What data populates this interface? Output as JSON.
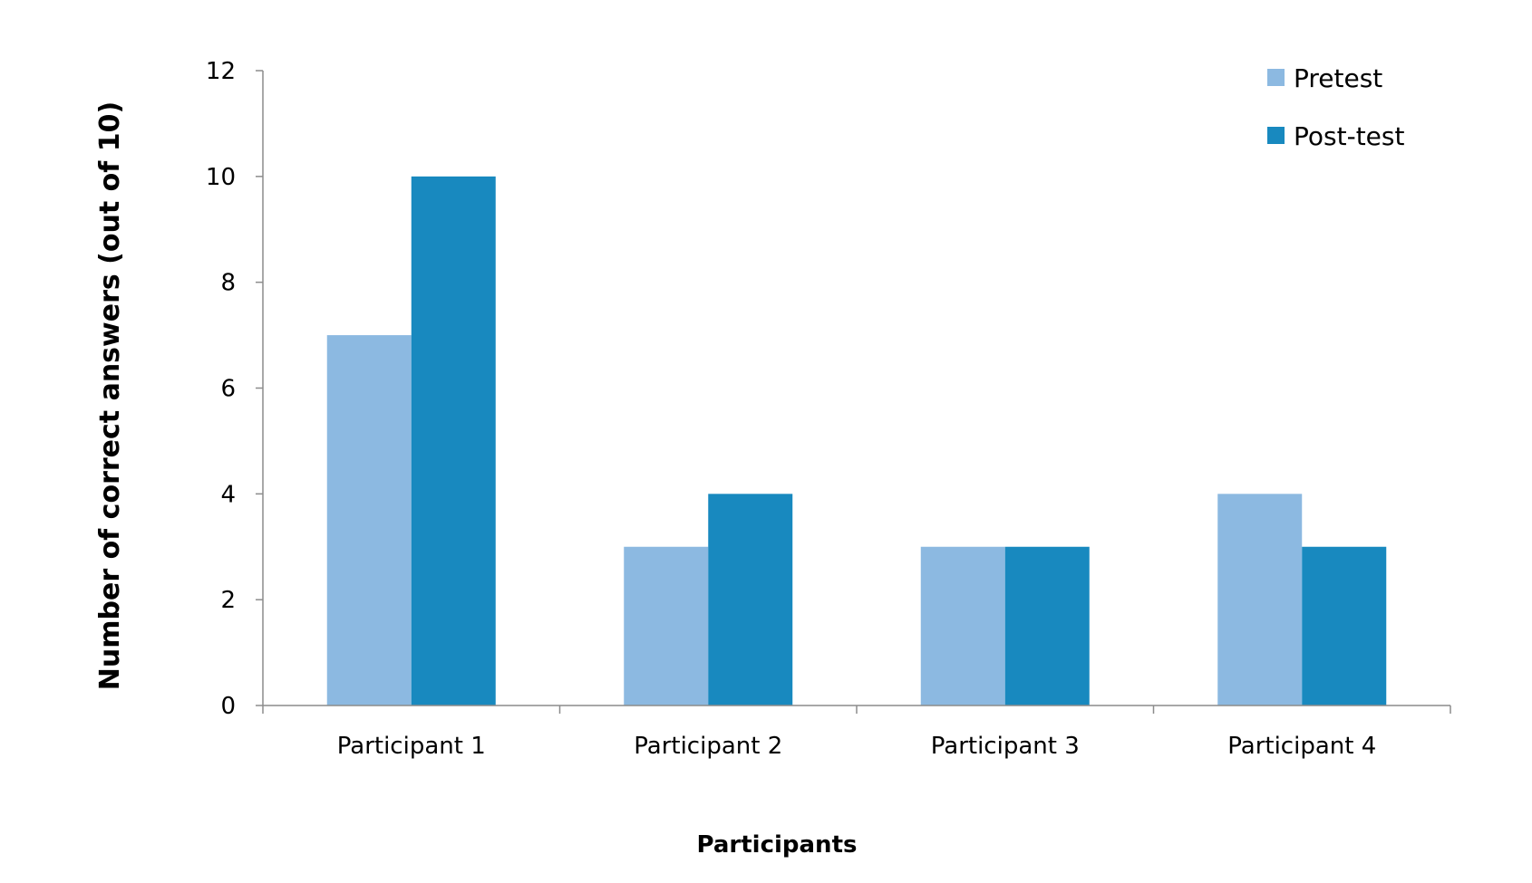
{
  "chart_data": {
    "type": "bar",
    "title": "",
    "xlabel": "Participants",
    "ylabel": "Number of correct answers (out of 10)",
    "categories": [
      "Participant 1",
      "Participant 2",
      "Participant 3",
      "Participant 4"
    ],
    "series": [
      {
        "name": "Pretest",
        "values": [
          7,
          3,
          3,
          4
        ],
        "color": "#8CB9E1"
      },
      {
        "name": "Post-test",
        "values": [
          10,
          4,
          3,
          3
        ],
        "color": "#1889BF"
      }
    ],
    "ylim": [
      0,
      12
    ],
    "yticks": [
      0,
      2,
      4,
      6,
      8,
      10,
      12
    ],
    "grid": false,
    "legend_position": "top-right"
  }
}
